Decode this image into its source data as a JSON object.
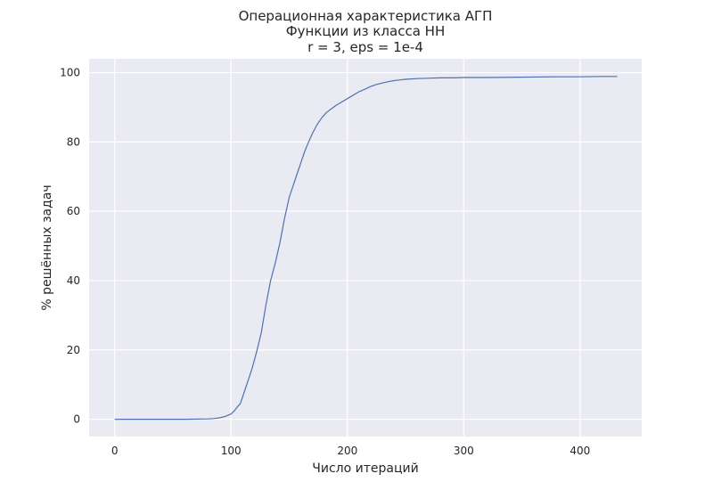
{
  "chart_data": {
    "type": "line",
    "title": [
      "Операционная характеристика АГП",
      "Функции из класса НН",
      "r = 3, eps = 1e-4"
    ],
    "xlabel": "Число итераций",
    "ylabel": "% решённых задач",
    "xlim": [
      -22,
      453
    ],
    "ylim": [
      -5,
      104
    ],
    "xticks": [
      0,
      100,
      200,
      300,
      400
    ],
    "yticks": [
      0,
      20,
      40,
      60,
      80,
      100
    ],
    "grid": true,
    "background": "#eaeaf2",
    "series": [
      {
        "color": "#4c72b0",
        "x": [
          0,
          20,
          40,
          60,
          80,
          85,
          90,
          95,
          100,
          103,
          106,
          108,
          110,
          112,
          115,
          118,
          122,
          126,
          130,
          134,
          138,
          142,
          146,
          150,
          154,
          158,
          160,
          163,
          166,
          170,
          174,
          178,
          182,
          186,
          190,
          194,
          200,
          205,
          210,
          215,
          220,
          225,
          230,
          235,
          240,
          245,
          250,
          255,
          260,
          270,
          280,
          290,
          300,
          320,
          350,
          380,
          400,
          420,
          432
        ],
        "y": [
          0,
          0,
          0,
          0,
          0.1,
          0.2,
          0.4,
          0.8,
          1.5,
          2.5,
          3.8,
          4.5,
          6.5,
          8.5,
          11.5,
          14.5,
          19.5,
          25,
          33,
          40,
          45,
          51,
          58,
          64,
          68,
          72,
          74,
          77,
          79.5,
          82.5,
          85,
          87,
          88.5,
          89.5,
          90.5,
          91.3,
          92.5,
          93.5,
          94.5,
          95.2,
          96,
          96.6,
          97,
          97.4,
          97.7,
          97.9,
          98.1,
          98.2,
          98.3,
          98.4,
          98.5,
          98.5,
          98.6,
          98.6,
          98.7,
          98.8,
          98.8,
          98.9,
          98.9
        ]
      }
    ]
  }
}
